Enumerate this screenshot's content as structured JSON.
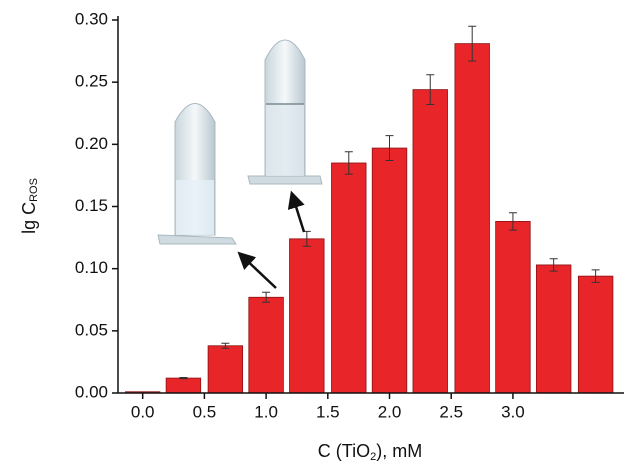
{
  "chart_data": {
    "type": "bar",
    "x_label": [
      "C (TiO",
      "2",
      "), mM"
    ],
    "y_label": [
      "lg C",
      "ROS"
    ],
    "x": [
      0,
      0.33,
      0.67,
      1.0,
      1.33,
      1.67,
      2.0,
      2.33,
      2.67,
      3.0,
      3.33,
      3.67
    ],
    "values": [
      0.001,
      0.012,
      0.038,
      0.077,
      0.124,
      0.185,
      0.197,
      0.244,
      0.281,
      0.138,
      0.103,
      0.094
    ],
    "errors": [
      0,
      0.0005,
      0.002,
      0.004,
      0.006,
      0.009,
      0.01,
      0.012,
      0.014,
      0.007,
      0.005,
      0.005
    ],
    "color": "#e8262a",
    "xlim": [
      -0.2,
      3.9
    ],
    "xticks": [
      {
        "value": 0,
        "label": "0.0"
      },
      {
        "value": 0.5,
        "label": "0.5"
      },
      {
        "value": 1,
        "label": "1.0"
      },
      {
        "value": 1.5,
        "label": "1.5"
      },
      {
        "value": 2,
        "label": "2.0"
      },
      {
        "value": 2.5,
        "label": "2.5"
      },
      {
        "value": 3,
        "label": "3.0"
      }
    ],
    "ylim": [
      0,
      0.3
    ],
    "yticks": [
      {
        "value": 0,
        "label": "0.00"
      },
      {
        "value": 0.05,
        "label": "0.05"
      },
      {
        "value": 0.1,
        "label": "0.10"
      },
      {
        "value": 0.15,
        "label": "0.15"
      },
      {
        "value": 0.2,
        "label": "0.20"
      },
      {
        "value": 0.25,
        "label": "0.25"
      },
      {
        "value": 0.3,
        "label": "0.30"
      }
    ]
  }
}
